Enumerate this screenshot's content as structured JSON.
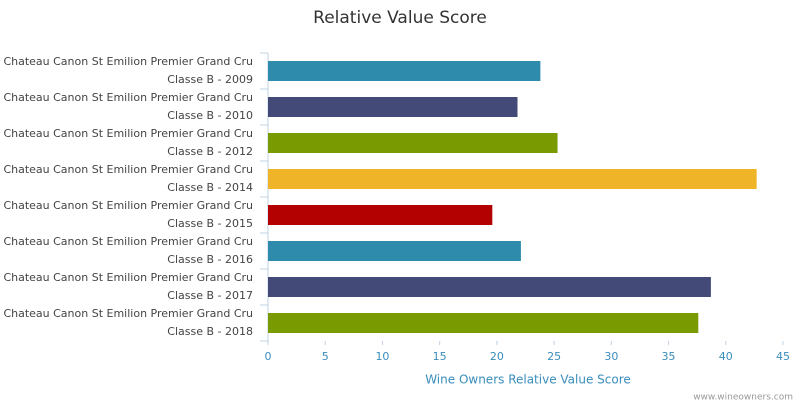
{
  "chart_data": {
    "type": "hbar",
    "title": "Relative Value Score",
    "x_label": "Wine Owners Relative Value Score",
    "credit": "www.wineowners.com",
    "categories": [
      "Chateau Canon St Emilion Premier Grand Cru Classe B - 2009",
      "Chateau Canon St Emilion Premier Grand Cru Classe B - 2010",
      "Chateau Canon St Emilion Premier Grand Cru Classe B - 2012",
      "Chateau Canon St Emilion Premier Grand Cru Classe B - 2014",
      "Chateau Canon St Emilion Premier Grand Cru Classe B - 2015",
      "Chateau Canon St Emilion Premier Grand Cru Classe B - 2016",
      "Chateau Canon St Emilion Premier Grand Cru Classe B - 2017",
      "Chateau Canon St Emilion Premier Grand Cru Classe B - 2018"
    ],
    "values": [
      23.8,
      21.8,
      25.3,
      42.7,
      19.6,
      22.1,
      38.7,
      37.6
    ],
    "colors": [
      "#2f8bab",
      "#434a78",
      "#7a9a01",
      "#f0b429",
      "#b30000",
      "#2f8bab",
      "#434a78",
      "#7a9a01"
    ],
    "xlim": [
      0,
      45
    ],
    "xticks": [
      0,
      5,
      10,
      15,
      20,
      25,
      30,
      35,
      40,
      45
    ],
    "grid": false
  }
}
